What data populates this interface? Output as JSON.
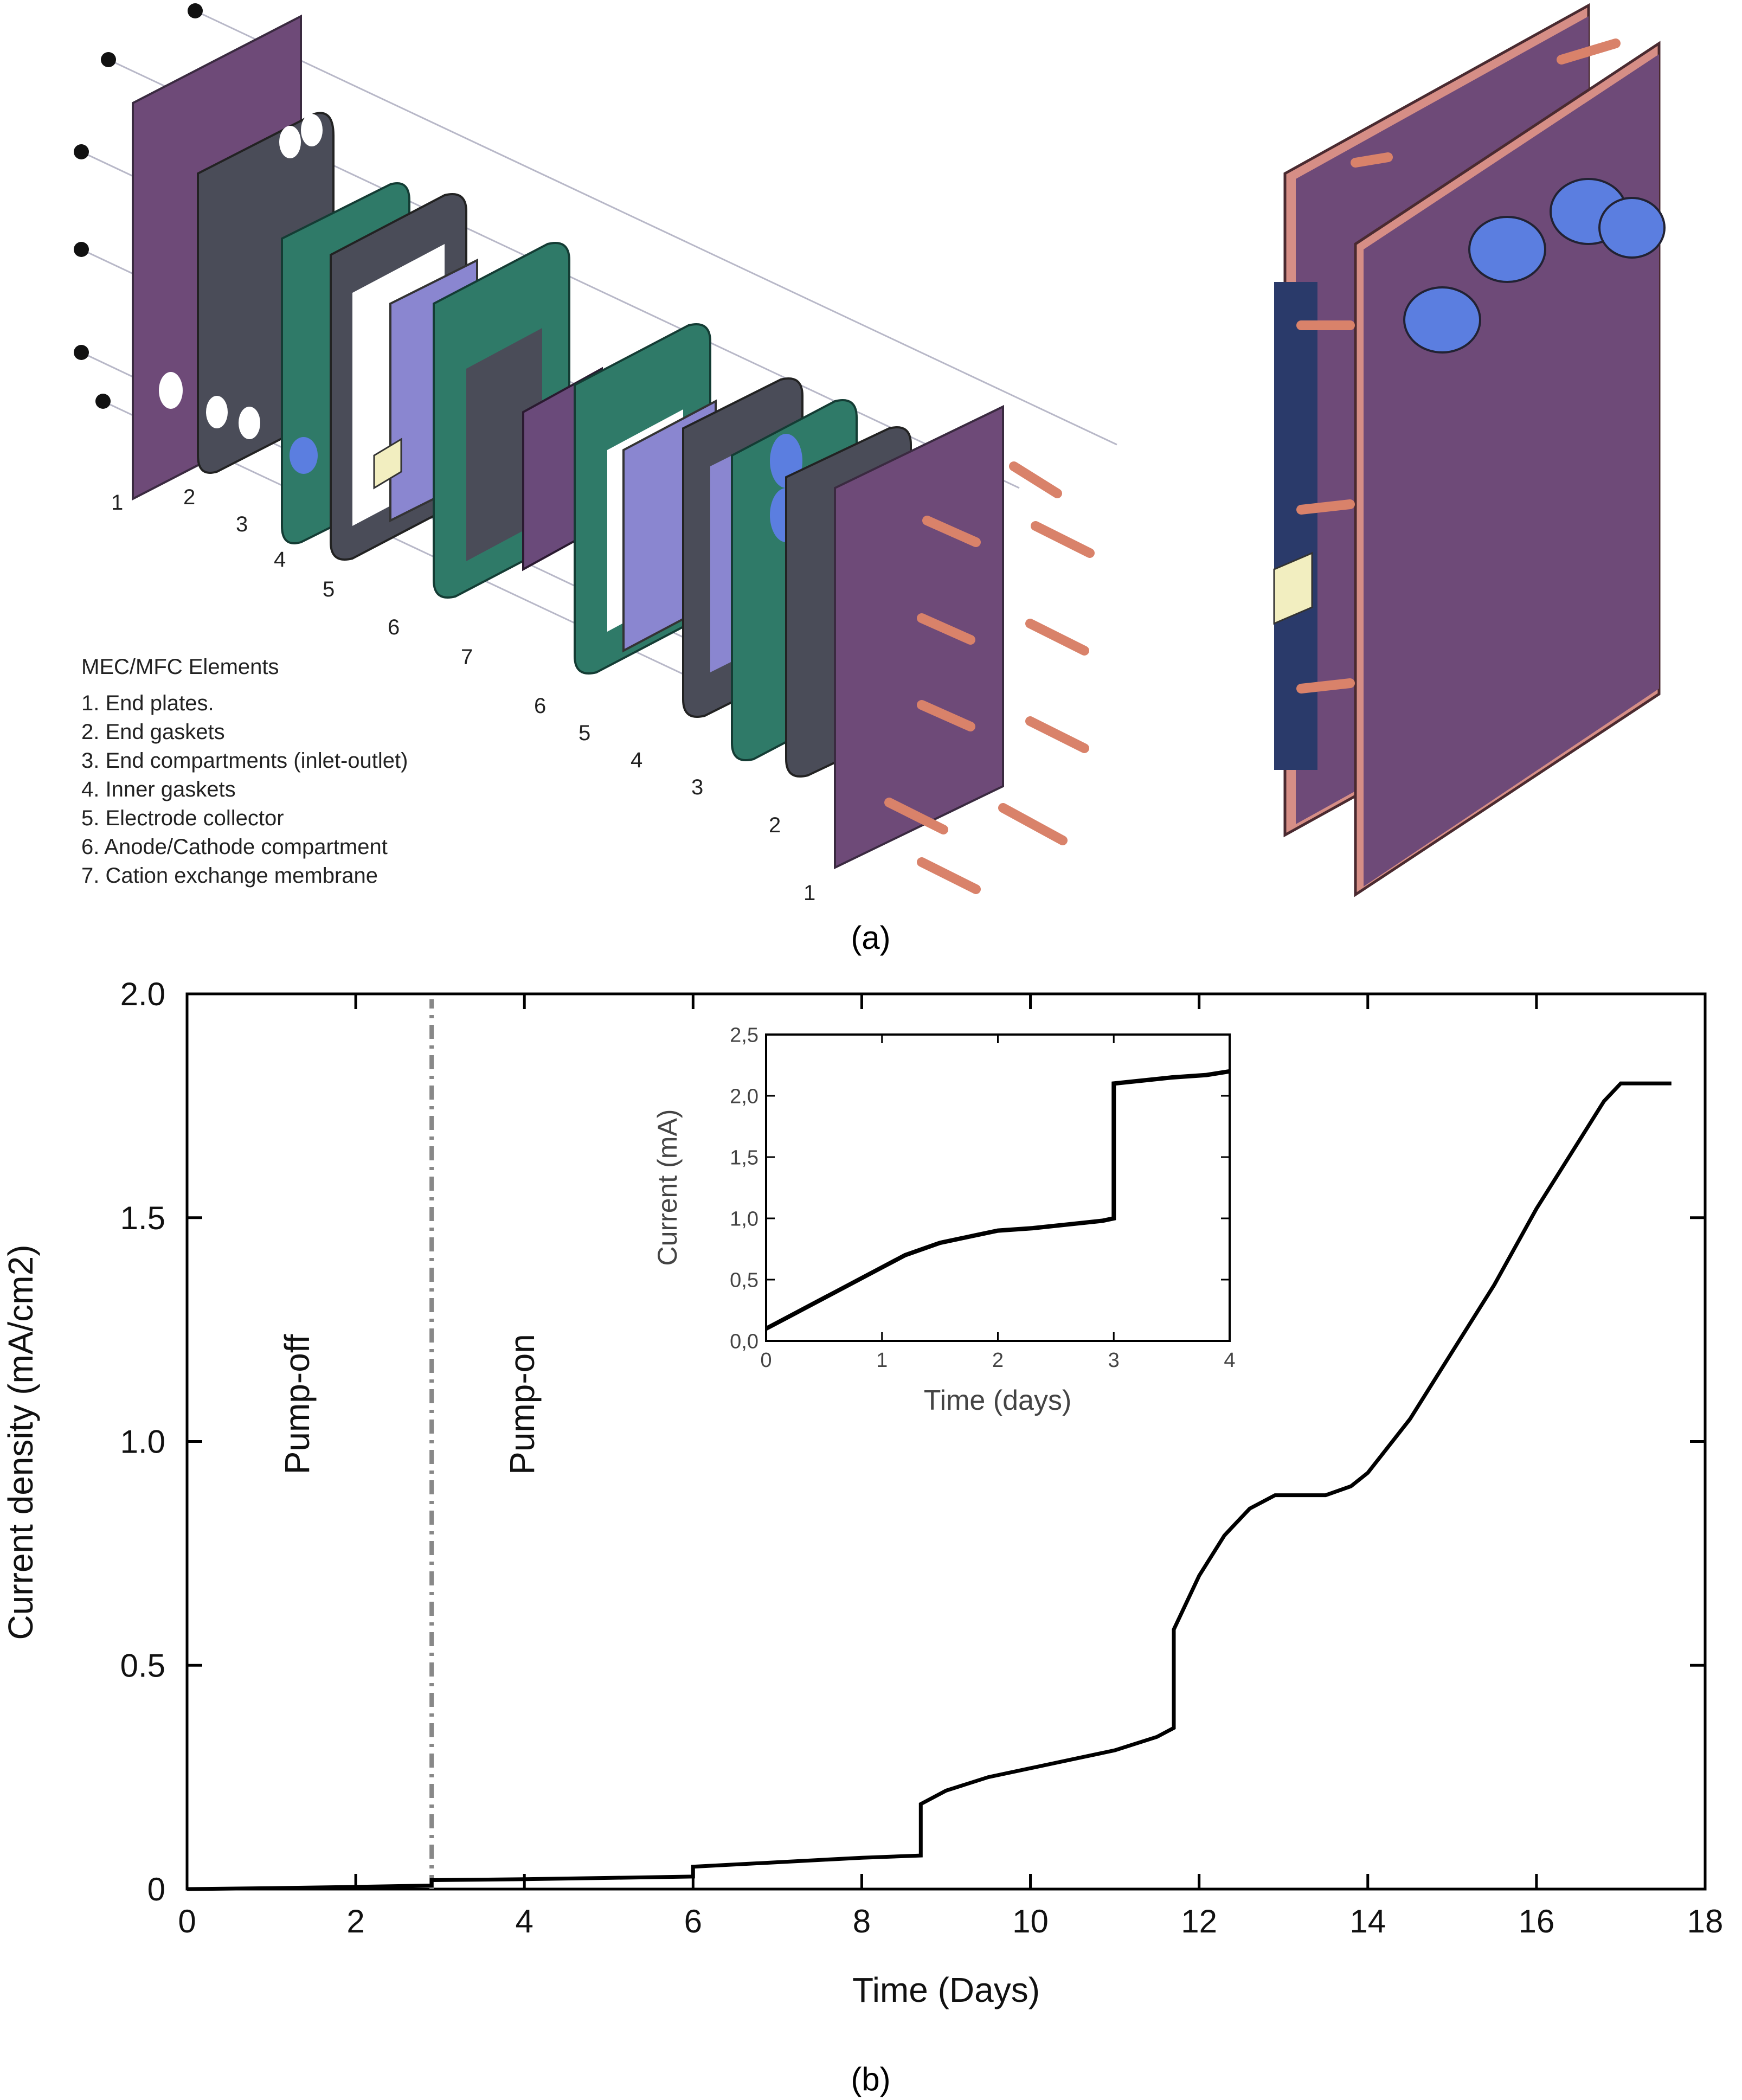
{
  "panel_a": {
    "caption": "(a)",
    "element_numbers_left": [
      "1",
      "2",
      "3",
      "4",
      "5",
      "6",
      "7"
    ],
    "element_numbers_right": [
      "6",
      "5",
      "4",
      "3",
      "2",
      "1"
    ],
    "legend": {
      "title": "MEC/MFC Elements",
      "items": [
        "1. End plates.",
        "2. End gaskets",
        "3. End compartments (inlet-outlet)",
        "4. Inner gaskets",
        "5. Electrode collector",
        "6. Anode/Cathode compartment",
        "7. Cation exchange membrane"
      ]
    },
    "colors": {
      "end_plate": "#6e4a78",
      "gasket": "#4a4c58",
      "compartment": "#2f7a68",
      "collector": "#8a86d0",
      "membrane": "#6a4a7a",
      "rod": "#d9826a",
      "port": "#5b7ee0"
    }
  },
  "panel_b": {
    "caption": "(b)",
    "annotations": {
      "pump_off": "Pump-off",
      "pump_on": "Pump-on"
    },
    "chart_data": [
      {
        "type": "line",
        "xlabel": "Time (Days)",
        "ylabel": "Current density (mA/cm2)",
        "xlim": [
          0,
          18
        ],
        "ylim": [
          0,
          2.0
        ],
        "xticks": [
          "0",
          "2",
          "4",
          "6",
          "8",
          "10",
          "12",
          "14",
          "16",
          "18"
        ],
        "yticks": [
          "0",
          "0.5",
          "1.0",
          "1.5",
          "2.0"
        ],
        "vline_x": 2.9,
        "series": [
          {
            "x": [
              0,
              1,
              2,
              2.9,
              2.9,
              4,
              5,
              6,
              6,
              7,
              8,
              8.7,
              8.7,
              9,
              9.5,
              10,
              10.5,
              11,
              11.5,
              11.7,
              11.7,
              12,
              12.3,
              12.6,
              12.9,
              13.2,
              13.5,
              13.8,
              14,
              14.5,
              15,
              15.5,
              16,
              16.5,
              16.8,
              17,
              17.3,
              17.6
            ],
            "y": [
              0,
              0.002,
              0.005,
              0.008,
              0.02,
              0.022,
              0.025,
              0.028,
              0.05,
              0.06,
              0.07,
              0.075,
              0.19,
              0.22,
              0.25,
              0.27,
              0.29,
              0.31,
              0.34,
              0.36,
              0.58,
              0.7,
              0.79,
              0.85,
              0.88,
              0.88,
              0.88,
              0.9,
              0.93,
              1.05,
              1.2,
              1.35,
              1.52,
              1.67,
              1.76,
              1.8,
              1.8,
              1.8
            ]
          }
        ]
      },
      {
        "type": "line",
        "xlabel": "Time (days)",
        "ylabel": "Current (mA)",
        "xlim": [
          0,
          4
        ],
        "ylim": [
          0,
          2.5
        ],
        "xticks": [
          "0",
          "1",
          "2",
          "3",
          "4"
        ],
        "yticks": [
          "0,0",
          "0,5",
          "1,0",
          "1,5",
          "2,0",
          "2,5"
        ],
        "series": [
          {
            "x": [
              0,
              0.2,
              0.4,
              0.6,
              0.8,
              1,
              1.2,
              1.5,
              1.8,
              2,
              2.3,
              2.6,
              2.9,
              3,
              3,
              3.2,
              3.5,
              3.8,
              4
            ],
            "y": [
              0.1,
              0.2,
              0.3,
              0.4,
              0.5,
              0.6,
              0.7,
              0.8,
              0.86,
              0.9,
              0.92,
              0.95,
              0.98,
              1.0,
              2.1,
              2.12,
              2.15,
              2.17,
              2.2
            ]
          }
        ]
      }
    ]
  }
}
